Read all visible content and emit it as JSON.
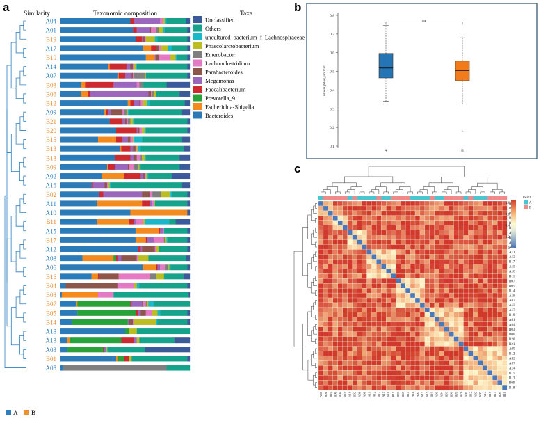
{
  "panels": {
    "a": {
      "letter": "a",
      "col_similarity": "Similarity",
      "col_composition": "Taxonomic composition",
      "col_taxa": "Taxa",
      "group_legend": [
        {
          "label": "A",
          "color": "#2f7fbf"
        },
        {
          "label": "B",
          "color": "#f0912b"
        }
      ]
    },
    "b": {
      "letter": "b"
    },
    "c": {
      "letter": "c"
    }
  },
  "chart_data": [
    {
      "type": "stacked-bar",
      "panel": "a",
      "title": "Taxonomic composition",
      "orientation": "horizontal",
      "series": [
        {
          "name": "Bacteroides",
          "color": "#2b7bb8"
        },
        {
          "name": "Escherichia-Shigella",
          "color": "#f28a1e"
        },
        {
          "name": "Prevotella_9",
          "color": "#2aa23a"
        },
        {
          "name": "Faecalibacterium",
          "color": "#cc2a2f"
        },
        {
          "name": "Megamonas",
          "color": "#9a67bd"
        },
        {
          "name": "Parabacteroides",
          "color": "#8c564b"
        },
        {
          "name": "Lachnoclostridium",
          "color": "#e47ac3"
        },
        {
          "name": "Enterobacter",
          "color": "#7f7f7f"
        },
        {
          "name": "Phascolarctobacterium",
          "color": "#bcbd22"
        },
        {
          "name": "uncultured_bacterium_f_Lachnospiraceae",
          "color": "#18b8c8"
        },
        {
          "name": "Others",
          "color": "#16a38c"
        },
        {
          "name": "Unclassified",
          "color": "#3a5a99"
        }
      ],
      "legend_order": [
        "Unclassified",
        "Others",
        "uncultured_bacterium_f_Lachnospiraceae",
        "Phascolarctobacterium",
        "Enterobacter",
        "Lachnoclostridium",
        "Parabacteroides",
        "Megamonas",
        "Faecalibacterium",
        "Prevotella_9",
        "Escherichia-Shigella",
        "Bacteroides"
      ],
      "samples": [
        {
          "name": "A04",
          "group": "A",
          "values": [
            0.54,
            0,
            0,
            0.03,
            0.2,
            0,
            0.02,
            0,
            0.02,
            0.01,
            0.15,
            0.03
          ]
        },
        {
          "name": "A01",
          "group": "A",
          "values": [
            0.56,
            0,
            0,
            0.03,
            0.1,
            0.01,
            0.04,
            0.02,
            0.03,
            0.02,
            0.17,
            0.02
          ]
        },
        {
          "name": "B19",
          "group": "B",
          "values": [
            0.58,
            0,
            0,
            0.05,
            0.01,
            0.01,
            0.01,
            0,
            0.07,
            0.02,
            0.23,
            0.02
          ]
        },
        {
          "name": "A17",
          "group": "A",
          "values": [
            0.64,
            0.06,
            0,
            0.04,
            0,
            0.02,
            0.02,
            0,
            0.05,
            0.03,
            0.12,
            0.02
          ]
        },
        {
          "name": "B10",
          "group": "B",
          "values": [
            0.66,
            0.07,
            0,
            0,
            0.01,
            0.02,
            0.09,
            0,
            0.04,
            0.01,
            0.08,
            0.02
          ]
        },
        {
          "name": "A14",
          "group": "A",
          "values": [
            0.37,
            0.01,
            0,
            0.13,
            0.03,
            0.02,
            0.01,
            0,
            0.01,
            0.01,
            0.39,
            0.02
          ]
        },
        {
          "name": "A07",
          "group": "A",
          "values": [
            0.44,
            0.01,
            0,
            0.05,
            0.05,
            0.01,
            0.01,
            0.08,
            0.01,
            0,
            0.32,
            0.02
          ]
        },
        {
          "name": "B03",
          "group": "B",
          "values": [
            0.16,
            0.03,
            0,
            0.22,
            0.18,
            0,
            0.02,
            0.03,
            0,
            0,
            0.18,
            0.18
          ]
        },
        {
          "name": "B06",
          "group": "B",
          "values": [
            0.16,
            0.05,
            0,
            0.02,
            0.45,
            0.02,
            0.01,
            0.01,
            0.02,
            0,
            0.18,
            0.08
          ]
        },
        {
          "name": "B12",
          "group": "B",
          "values": [
            0.52,
            0.02,
            0,
            0.03,
            0.04,
            0.01,
            0.02,
            0,
            0.03,
            0.02,
            0.27,
            0.04
          ]
        },
        {
          "name": "A09",
          "group": "A",
          "values": [
            0.34,
            0.01,
            0,
            0.02,
            0.02,
            0.09,
            0.01,
            0.02,
            0.01,
            0.01,
            0.41,
            0.06
          ]
        },
        {
          "name": "B21",
          "group": "B",
          "values": [
            0.38,
            0,
            0,
            0.1,
            0.02,
            0.01,
            0.01,
            0.02,
            0.02,
            0.01,
            0.41,
            0.02
          ]
        },
        {
          "name": "B20",
          "group": "B",
          "values": [
            0.43,
            0,
            0,
            0.16,
            0.01,
            0.01,
            0.02,
            0,
            0.02,
            0.01,
            0.32,
            0.02
          ]
        },
        {
          "name": "B15",
          "group": "B",
          "values": [
            0.29,
            0.14,
            0,
            0.05,
            0.04,
            0.02,
            0.02,
            0,
            0.01,
            0.06,
            0.31,
            0.06
          ]
        },
        {
          "name": "B13",
          "group": "B",
          "values": [
            0.46,
            0.01,
            0,
            0.07,
            0.02,
            0.02,
            0.01,
            0,
            0.01,
            0.02,
            0.33,
            0.05
          ]
        },
        {
          "name": "B18",
          "group": "B",
          "values": [
            0.42,
            0,
            0,
            0.12,
            0.03,
            0.02,
            0.03,
            0.01,
            0.02,
            0.01,
            0.26,
            0.08
          ]
        },
        {
          "name": "B09",
          "group": "B",
          "values": [
            0.36,
            0.01,
            0,
            0.05,
            0.1,
            0.01,
            0.04,
            0.03,
            0.01,
            0.01,
            0.3,
            0.08
          ]
        },
        {
          "name": "A02",
          "group": "A",
          "values": [
            0.32,
            0.17,
            0,
            0.13,
            0.02,
            0.01,
            0.01,
            0,
            0.01,
            0.01,
            0.18,
            0.14
          ]
        },
        {
          "name": "A16",
          "group": "A",
          "values": [
            0.24,
            0,
            0,
            0.01,
            0.09,
            0.02,
            0.01,
            0,
            0.01,
            0.01,
            0.55,
            0.06
          ]
        },
        {
          "name": "B02",
          "group": "B",
          "values": [
            0.3,
            0,
            0,
            0.03,
            0.3,
            0.06,
            0.02,
            0.07,
            0.07,
            0.01,
            0.12,
            0.02
          ]
        },
        {
          "name": "A11",
          "group": "A",
          "values": [
            0.28,
            0.35,
            0,
            0.06,
            0.02,
            0,
            0.01,
            0,
            0.01,
            0,
            0.25,
            0.02
          ]
        },
        {
          "name": "A10",
          "group": "A",
          "values": [
            0.54,
            0.44,
            0,
            0,
            0,
            0,
            0,
            0,
            0,
            0,
            0,
            0.02
          ]
        },
        {
          "name": "B11",
          "group": "B",
          "values": [
            0.28,
            0.25,
            0,
            0.04,
            0.01,
            0,
            0.06,
            0,
            0.01,
            0.19,
            0.05,
            0.11
          ]
        },
        {
          "name": "A15",
          "group": "A",
          "values": [
            0.58,
            0.18,
            0,
            0.01,
            0.02,
            0,
            0.01,
            0,
            0,
            0,
            0.18,
            0.02
          ]
        },
        {
          "name": "B17",
          "group": "B",
          "values": [
            0.58,
            0.08,
            0,
            0.01,
            0.05,
            0,
            0.08,
            0.01,
            0.01,
            0.01,
            0.15,
            0.02
          ]
        },
        {
          "name": "A12",
          "group": "A",
          "values": [
            0.6,
            0,
            0,
            0.02,
            0.01,
            0.1,
            0.01,
            0,
            0.02,
            0,
            0.22,
            0.02
          ]
        },
        {
          "name": "A08",
          "group": "A",
          "values": [
            0.17,
            0.24,
            0.02,
            0.01,
            0.03,
            0.12,
            0.01,
            0,
            0.08,
            0,
            0.29,
            0.03
          ]
        },
        {
          "name": "A06",
          "group": "A",
          "values": [
            0.64,
            0.1,
            0,
            0.01,
            0.02,
            0,
            0.04,
            0.02,
            0.01,
            0.01,
            0.13,
            0.02
          ]
        },
        {
          "name": "B16",
          "group": "B",
          "values": [
            0.24,
            0.05,
            0,
            0.01,
            0,
            0.15,
            0.24,
            0.05,
            0.06,
            0,
            0.15,
            0.05
          ]
        },
        {
          "name": "B04",
          "group": "B",
          "values": [
            0.04,
            0,
            0,
            0,
            0,
            0.4,
            0.13,
            0,
            0.02,
            0.02,
            0.37,
            0.02
          ]
        },
        {
          "name": "B08",
          "group": "B",
          "values": [
            0.01,
            0.28,
            0,
            0,
            0,
            0,
            0.12,
            0,
            0,
            0,
            0.58,
            0.01
          ]
        },
        {
          "name": "B07",
          "group": "B",
          "values": [
            0.12,
            0.01,
            0.41,
            0.01,
            0.08,
            0.01,
            0.02,
            0.01,
            0.01,
            0.04,
            0.28,
            0
          ]
        },
        {
          "name": "B05",
          "group": "B",
          "values": [
            0.13,
            0,
            0.45,
            0.02,
            0.02,
            0.04,
            0.05,
            0,
            0.04,
            0.02,
            0.21,
            0.02
          ]
        },
        {
          "name": "B14",
          "group": "B",
          "values": [
            0.09,
            0,
            0.43,
            0,
            0.01,
            0.03,
            0.01,
            0,
            0.17,
            0.01,
            0.23,
            0.02
          ]
        },
        {
          "name": "A18",
          "group": "A",
          "values": [
            0.5,
            0,
            0.03,
            0,
            0,
            0,
            0,
            0,
            0.06,
            0,
            0.41,
            0
          ]
        },
        {
          "name": "A13",
          "group": "A",
          "values": [
            0.05,
            0.02,
            0.4,
            0.1,
            0.02,
            0,
            0,
            0,
            0.02,
            0,
            0.27,
            0.12
          ]
        },
        {
          "name": "A03",
          "group": "A",
          "values": [
            0.05,
            0,
            0.28,
            0.01,
            0.01,
            0,
            0,
            0,
            0.01,
            0.01,
            0.28,
            0.35
          ]
        },
        {
          "name": "B01",
          "group": "B",
          "values": [
            0.43,
            0.01,
            0.05,
            0.04,
            0,
            0,
            0,
            0,
            0.02,
            0,
            0.43,
            0.02
          ]
        },
        {
          "name": "A05",
          "group": "A",
          "values": [
            0.02,
            0,
            0,
            0,
            0,
            0,
            0,
            0.8,
            0,
            0,
            0.18,
            0
          ]
        }
      ]
    },
    {
      "type": "box",
      "panel": "b",
      "ylabel": "unweighted_unifrac",
      "ylim": [
        0.1,
        0.8
      ],
      "yticks": [
        0.1,
        0.2,
        0.3,
        0.4,
        0.5,
        0.6,
        0.7,
        0.8
      ],
      "significance": "**",
      "groups": [
        {
          "name": "A",
          "color": "#2575b4",
          "whisker_low": 0.34,
          "q1": 0.465,
          "median": 0.518,
          "q3": 0.596,
          "whisker_high": 0.745,
          "outliers": []
        },
        {
          "name": "B",
          "color": "#f27c1b",
          "whisker_low": 0.325,
          "q1": 0.45,
          "median": 0.505,
          "q3": 0.555,
          "whisker_high": 0.68,
          "outliers": [
            0.18
          ]
        }
      ]
    },
    {
      "type": "heatmap",
      "panel": "c",
      "annotation_title": "treat1",
      "annotation_levels": [
        {
          "label": "A",
          "color": "#49c6cf"
        },
        {
          "label": "B",
          "color": "#ef8a8c"
        }
      ],
      "colorbar_ticks": [
        0,
        0.2,
        0.4,
        0.6,
        0.8
      ],
      "colorscale": [
        "#4b78b8",
        "#fffbd0",
        "#d13a2a"
      ],
      "row_labels": [
        "A05",
        "B01",
        "B10",
        "B08",
        "B04",
        "B16",
        "A16",
        "B02",
        "A06",
        "A08",
        "A11",
        "A12",
        "B17",
        "A15",
        "A10",
        "B11",
        "B07",
        "B05",
        "B14",
        "A18",
        "A03",
        "A13",
        "A17",
        "B19",
        "A01",
        "A04",
        "B03",
        "B06",
        "B20",
        "B21",
        "A09",
        "B12",
        "A02",
        "A07",
        "A14",
        "B15",
        "B13",
        "B09",
        "B18"
      ],
      "col_labels": [
        "A05",
        "B01",
        "B10",
        "B08",
        "B04",
        "B16",
        "A16",
        "B02",
        "A06",
        "A08",
        "A11",
        "A12",
        "B17",
        "A15",
        "A10",
        "B11",
        "B07",
        "B05",
        "B14",
        "A18",
        "A03",
        "A13",
        "A17",
        "B19",
        "A01",
        "A04",
        "B03",
        "B06",
        "B20",
        "B21",
        "A09",
        "B12",
        "A02",
        "A07",
        "A14",
        "B15",
        "B13",
        "B09",
        "B18"
      ],
      "clusters": [
        [
          0,
          2
        ],
        [
          3,
          5
        ],
        [
          6,
          9
        ],
        [
          10,
          15
        ],
        [
          16,
          21
        ],
        [
          22,
          29
        ],
        [
          30,
          38
        ]
      ],
      "cluster_similarity_within": 0.45,
      "cluster_similarity_between": 0.7,
      "diagonal_value": 0.0
    }
  ]
}
